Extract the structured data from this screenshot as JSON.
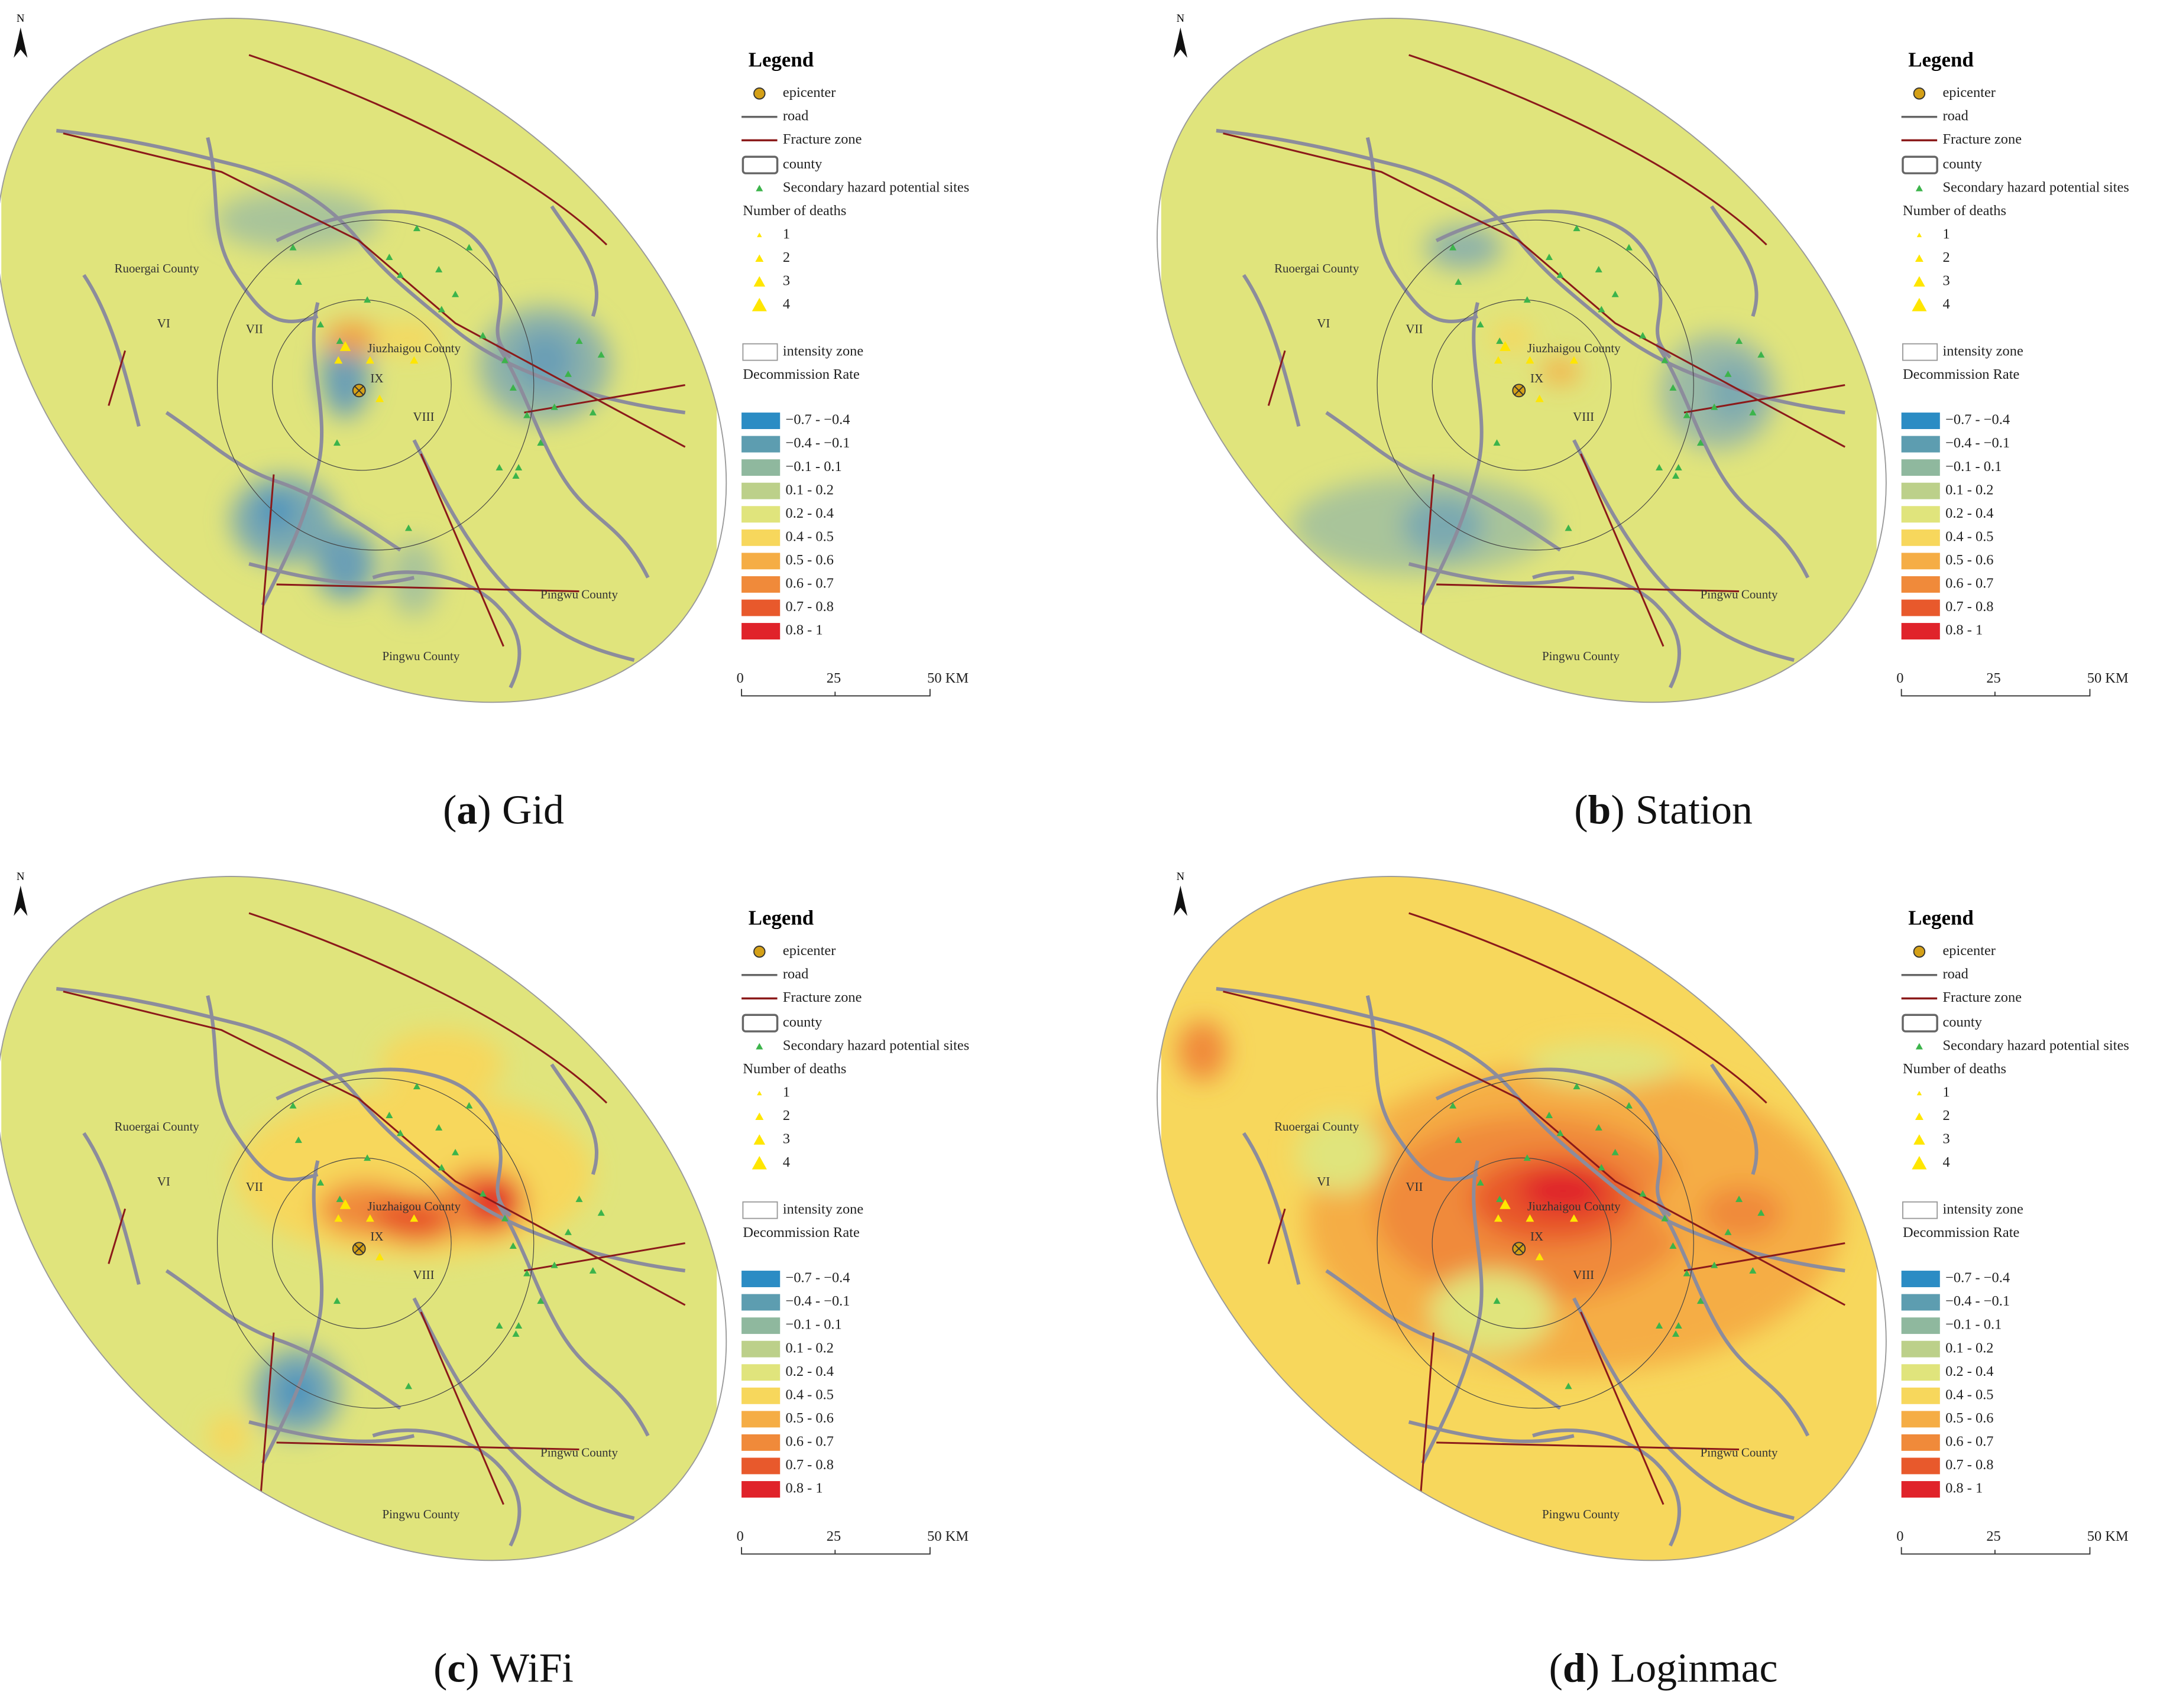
{
  "north": "N",
  "map_labels": [
    "Ruoergai County",
    "VI",
    "VII",
    "Jiuzhaigou County",
    "IX",
    "VIII",
    "Pingwu County",
    "Pingwu County"
  ],
  "legend": {
    "title": "Legend",
    "items": [
      "epicenter",
      "road",
      "Fracture zone",
      "county",
      "Secondary hazard potential sites"
    ],
    "deaths_title": "Number of deaths",
    "deaths": [
      "1",
      "2",
      "3",
      "4"
    ],
    "intensity_zone": "intensity zone",
    "rate_title": "Decommission Rate",
    "rates": [
      {
        "label": "−0.7 - −0.4",
        "color": "#2b8cc4"
      },
      {
        "label": "−0.4 - −0.1",
        "color": "#5d9db0"
      },
      {
        "label": "−0.1 - 0.1",
        "color": "#8fb89e"
      },
      {
        "label": "0.1 - 0.2",
        "color": "#bcd08a"
      },
      {
        "label": "0.2 - 0.4",
        "color": "#e0e47c"
      },
      {
        "label": "0.4 - 0.5",
        "color": "#f7d75c"
      },
      {
        "label": "0.5 - 0.6",
        "color": "#f5ad45"
      },
      {
        "label": "0.6 - 0.7",
        "color": "#f08a3a"
      },
      {
        "label": "0.7 - 0.8",
        "color": "#e8592c"
      },
      {
        "label": "0.8 - 1",
        "color": "#e0232a"
      }
    ]
  },
  "scale_bar": [
    "0",
    "25",
    "50 KM"
  ],
  "panels": [
    {
      "open": "(",
      "letter": "a",
      "close": ")",
      "name": "Gid",
      "base_color": "#e0e47c"
    },
    {
      "open": "(",
      "letter": "b",
      "close": ")",
      "name": "Station",
      "base_color": "#e0e47c"
    },
    {
      "open": "(",
      "letter": "c",
      "close": ")",
      "name": "WiFi",
      "base_color": "#e0e47c"
    },
    {
      "open": "(",
      "letter": "d",
      "close": ")",
      "name": "Loginmac",
      "base_color": "#f7d75c"
    }
  ]
}
